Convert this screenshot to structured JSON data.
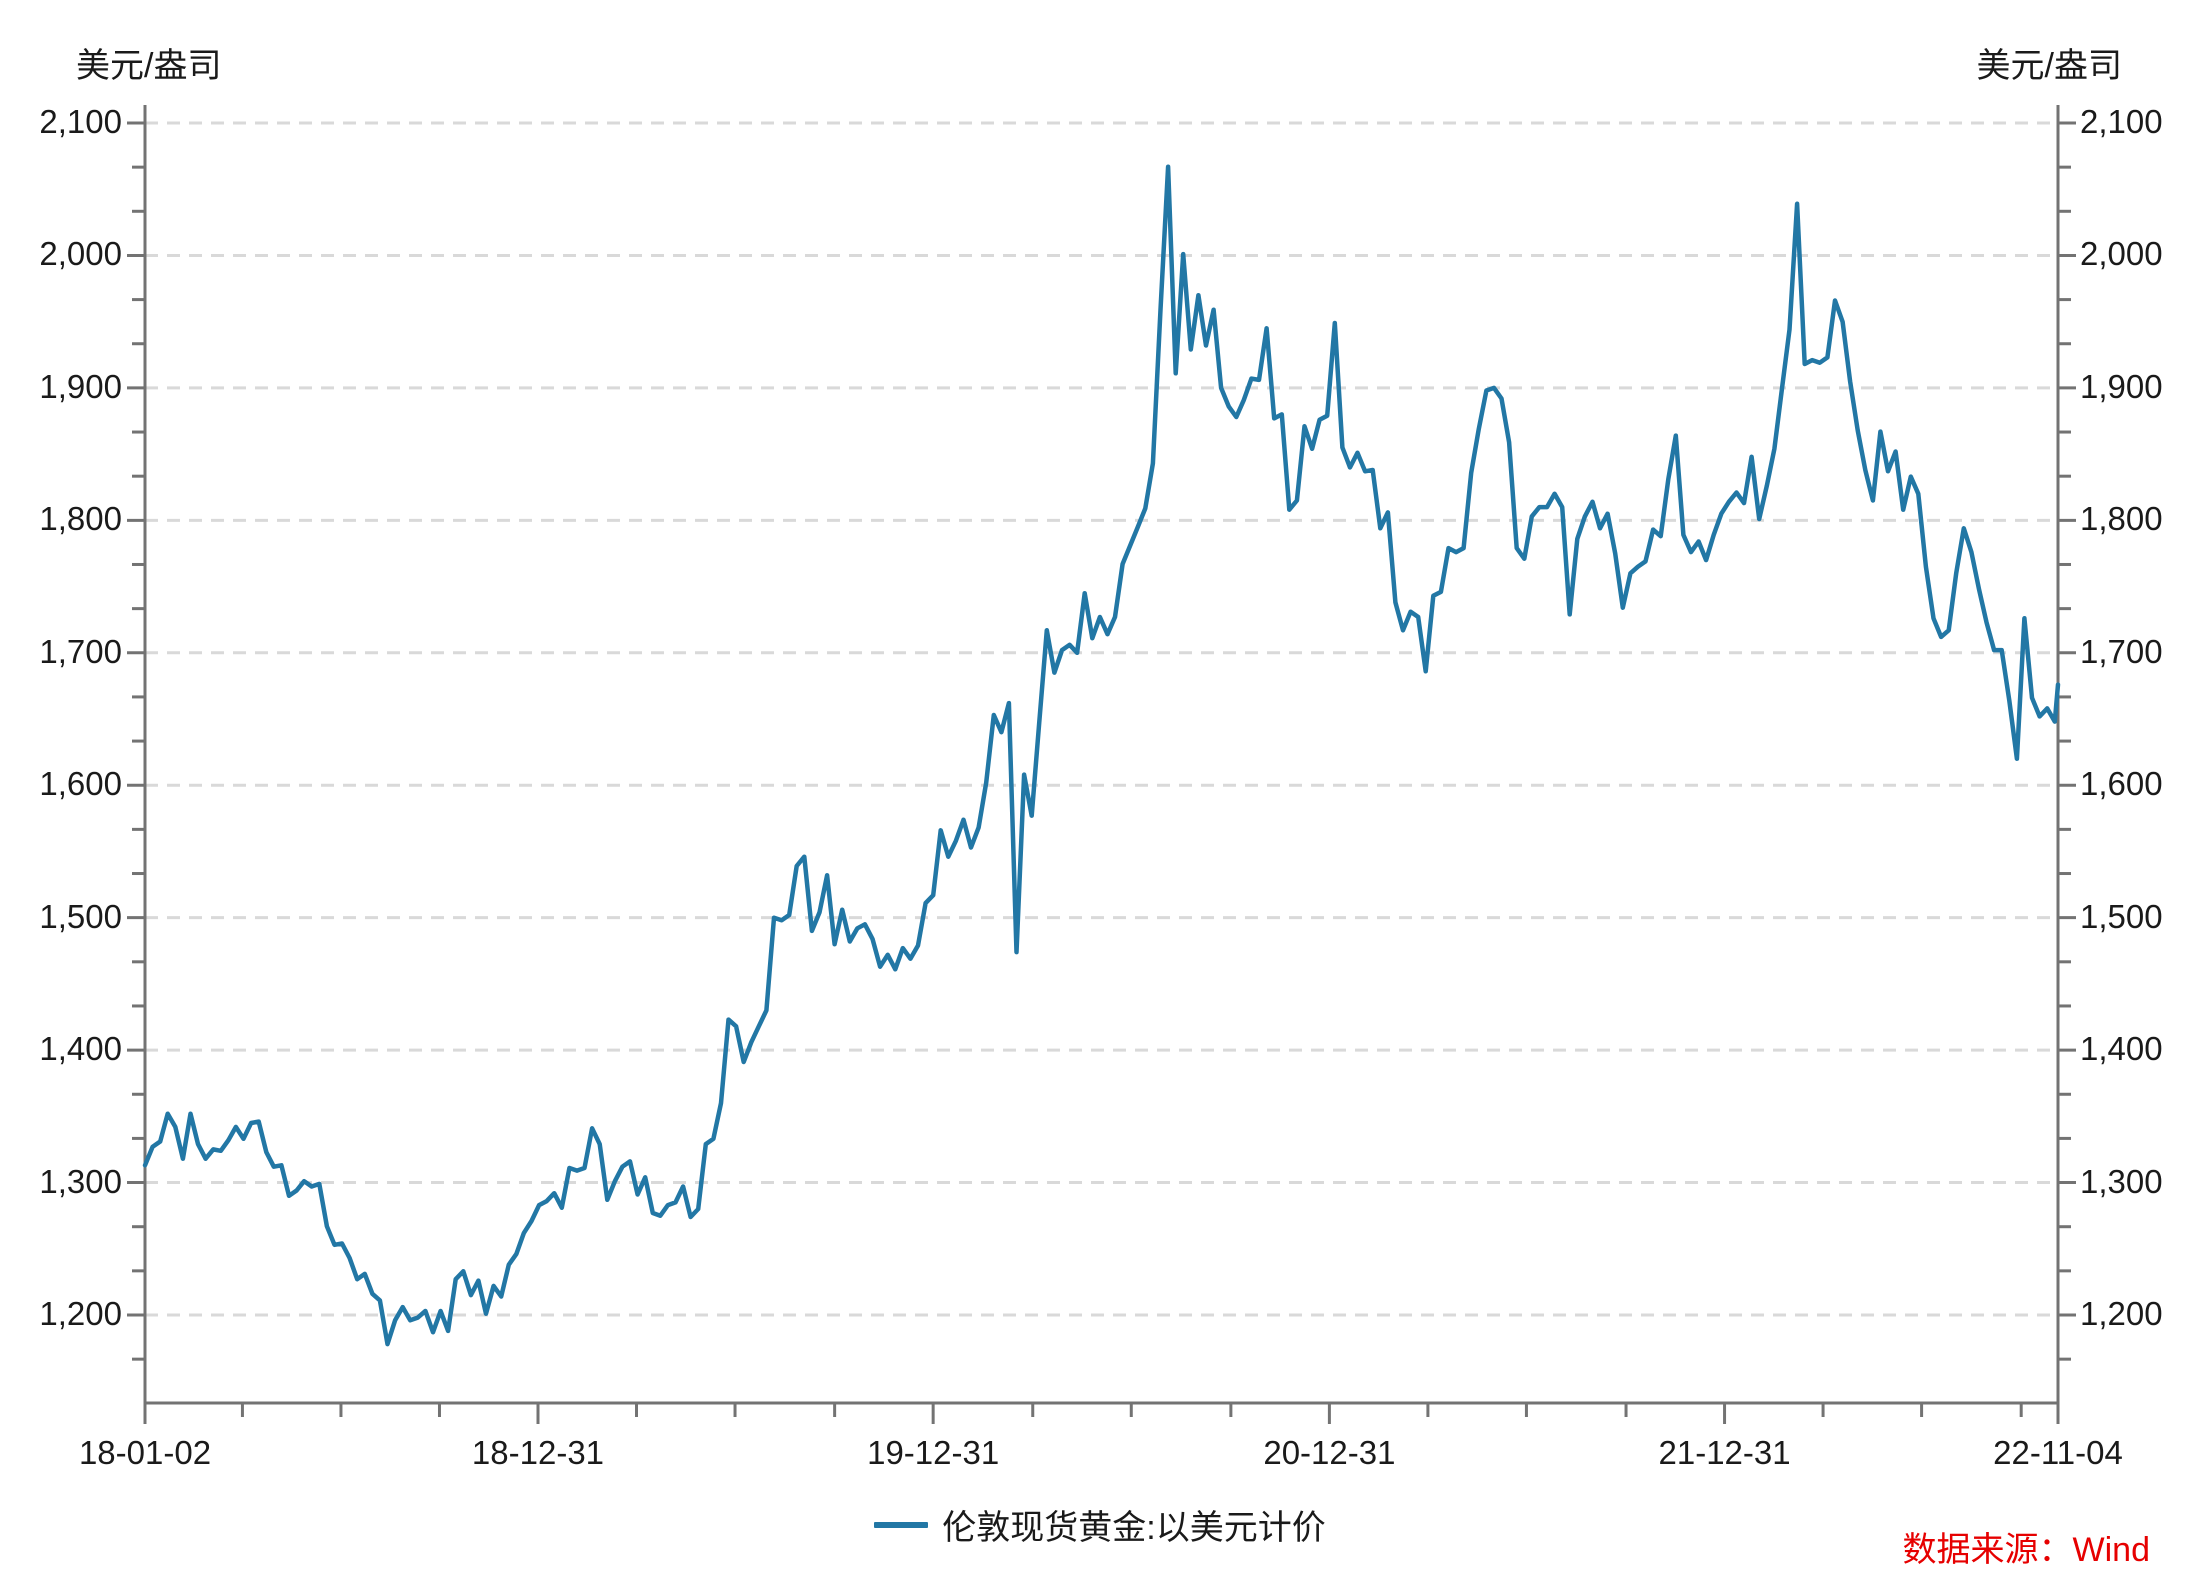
{
  "axis_titles": {
    "left": "美元/盎司",
    "right": "美元/盎司"
  },
  "legend": {
    "label": "伦敦现货黄金:以美元计价"
  },
  "source": {
    "text": "数据来源：Wind"
  },
  "chart_data": {
    "type": "line",
    "title": "",
    "xlabel": "",
    "ylabel": "美元/盎司",
    "grid": "horizontal-dashed",
    "legend_position": "bottom-center",
    "line_color": "#2277A5",
    "axis_color": "#737373",
    "grid_color": "#d9d9d9",
    "text_color": "#1a1a1a",
    "source_color": "#E60000",
    "ylim_labeled": [
      1200,
      2100
    ],
    "y_tick_interval": 100,
    "y_ticks": [
      2100,
      2000,
      1900,
      1800,
      1700,
      1600,
      1500,
      1400,
      1300,
      1200
    ],
    "y_tick_labels": [
      "2,100",
      "2,000",
      "1,900",
      "1,800",
      "1,700",
      "1,600",
      "1,500",
      "1,400",
      "1,300",
      "1,200"
    ],
    "x_tick_labels": [
      "18-01-02",
      "18-12-31",
      "19-12-31",
      "20-12-31",
      "21-12-31",
      "22-11-04"
    ],
    "x_tick_days": [
      0,
      363,
      728,
      1094,
      1459,
      1767
    ],
    "x_minor_tick_days": [
      90,
      181,
      272,
      454,
      545,
      637,
      820,
      911,
      1003,
      1185,
      1276,
      1368,
      1550,
      1641,
      1733
    ],
    "start_date": "2018-01-02",
    "end_date": "2022-11-04",
    "total_days": 1767,
    "sampling": "weekly (approx. values read from plot)",
    "series": [
      {
        "name": "伦敦现货黄金:以美元计价",
        "color": "#2277A5",
        "values": [
          1313,
          1327,
          1331,
          1352,
          1342,
          1318,
          1352,
          1329,
          1318,
          1325,
          1324,
          1332,
          1342,
          1333,
          1345,
          1346,
          1323,
          1312,
          1313,
          1290,
          1294,
          1301,
          1297,
          1299,
          1267,
          1253,
          1254,
          1243,
          1227,
          1231,
          1216,
          1211,
          1178,
          1196,
          1206,
          1196,
          1198,
          1203,
          1187,
          1203,
          1188,
          1227,
          1233,
          1215,
          1226,
          1201,
          1222,
          1214,
          1238,
          1246,
          1262,
          1271,
          1283,
          1286,
          1292,
          1281,
          1311,
          1309,
          1311,
          1341,
          1329,
          1287,
          1301,
          1312,
          1316,
          1291,
          1304,
          1277,
          1275,
          1283,
          1285,
          1297,
          1274,
          1280,
          1329,
          1333,
          1360,
          1423,
          1418,
          1391,
          1406,
          1418,
          1430,
          1500,
          1498,
          1502,
          1539,
          1546,
          1490,
          1504,
          1532,
          1480,
          1506,
          1482,
          1492,
          1495,
          1484,
          1463,
          1472,
          1461,
          1477,
          1469,
          1479,
          1511,
          1517,
          1566,
          1546,
          1558,
          1574,
          1553,
          1568,
          1602,
          1653,
          1640,
          1662,
          1474,
          1608,
          1577,
          1647,
          1717,
          1685,
          1702,
          1706,
          1700,
          1745,
          1711,
          1727,
          1714,
          1727,
          1767,
          1781,
          1795,
          1809,
          1843,
          1959,
          2067,
          1911,
          2001,
          1929,
          1970,
          1932,
          1959,
          1900,
          1886,
          1878,
          1891,
          1907,
          1906,
          1945,
          1877,
          1880,
          1808,
          1815,
          1871,
          1854,
          1876,
          1879,
          1949,
          1855,
          1840,
          1851,
          1837,
          1838,
          1794,
          1806,
          1738,
          1717,
          1731,
          1727,
          1686,
          1743,
          1746,
          1779,
          1776,
          1779,
          1836,
          1869,
          1898,
          1900,
          1892,
          1859,
          1779,
          1771,
          1803,
          1810,
          1810,
          1820,
          1810,
          1729,
          1786,
          1803,
          1814,
          1794,
          1805,
          1775,
          1734,
          1760,
          1765,
          1769,
          1793,
          1788,
          1831,
          1864,
          1789,
          1776,
          1784,
          1770,
          1789,
          1805,
          1814,
          1821,
          1813,
          1848,
          1801,
          1826,
          1854,
          1899,
          1944,
          2039,
          1918,
          1921,
          1919,
          1923,
          1966,
          1950,
          1905,
          1868,
          1838,
          1815,
          1867,
          1837,
          1852,
          1808,
          1833,
          1820,
          1765,
          1726,
          1712,
          1717,
          1760,
          1794,
          1776,
          1748,
          1723,
          1702,
          1702,
          1664,
          1620,
          1726,
          1666,
          1652,
          1658,
          1648,
          1676
        ]
      }
    ]
  }
}
